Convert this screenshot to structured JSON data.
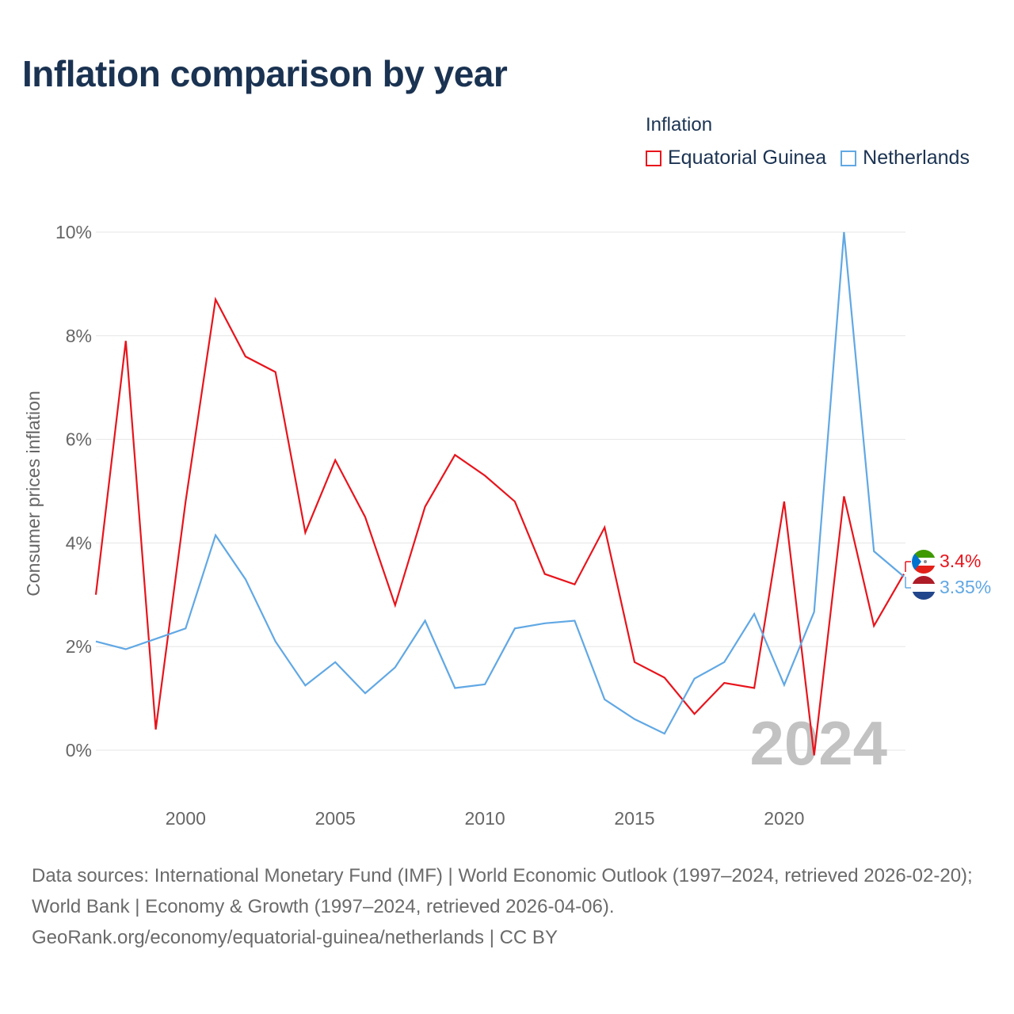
{
  "title": "Inflation comparison by year",
  "legend_title": "Inflation",
  "footer": {
    "sources": "Data sources: International Monetary Fund (IMF) | World Economic Outlook (1997–2024, retrieved 2026-02-20); World Bank | Economy & Growth (1997–2024, retrieved 2026-04-06).",
    "credit": "GeoRank.org/economy/equatorial-guinea/netherlands | CC BY"
  },
  "chart_data": {
    "type": "line",
    "title": "Inflation comparison by year",
    "xlabel": "",
    "ylabel": "Consumer prices inflation",
    "year_label": "2024",
    "xlim": [
      1997,
      2024
    ],
    "ylim": [
      0,
      10
    ],
    "grid": true,
    "legend_position": "top-right",
    "x_ticks": [
      2000,
      2005,
      2010,
      2015,
      2020
    ],
    "y_ticks": [
      0,
      2,
      4,
      6,
      8,
      10
    ],
    "y_tick_labels": [
      "0%",
      "2%",
      "4%",
      "6%",
      "8%",
      "10%"
    ],
    "x": [
      1997,
      1998,
      1999,
      2000,
      2001,
      2002,
      2003,
      2004,
      2005,
      2006,
      2007,
      2008,
      2009,
      2010,
      2011,
      2012,
      2013,
      2014,
      2015,
      2016,
      2017,
      2018,
      2019,
      2020,
      2021,
      2022,
      2023,
      2024
    ],
    "series": [
      {
        "name": "Equatorial Guinea",
        "color": "#e8141c",
        "end_label": "3.4%",
        "values": [
          3.0,
          7.9,
          0.4,
          4.8,
          8.7,
          7.6,
          7.3,
          4.2,
          5.6,
          4.5,
          2.8,
          4.7,
          5.7,
          5.3,
          4.8,
          3.4,
          3.2,
          4.3,
          1.7,
          1.4,
          0.7,
          1.3,
          1.2,
          4.8,
          -0.1,
          4.9,
          2.4,
          3.4
        ]
      },
      {
        "name": "Netherlands",
        "color": "#61a8e4",
        "end_label": "3.35%",
        "values": [
          2.1,
          1.95,
          2.15,
          2.35,
          4.15,
          3.3,
          2.1,
          1.25,
          1.7,
          1.1,
          1.6,
          2.5,
          1.2,
          1.27,
          2.35,
          2.45,
          2.5,
          0.98,
          0.6,
          0.32,
          1.38,
          1.7,
          2.63,
          1.26,
          2.67,
          10.0,
          3.84,
          3.35
        ]
      }
    ]
  }
}
